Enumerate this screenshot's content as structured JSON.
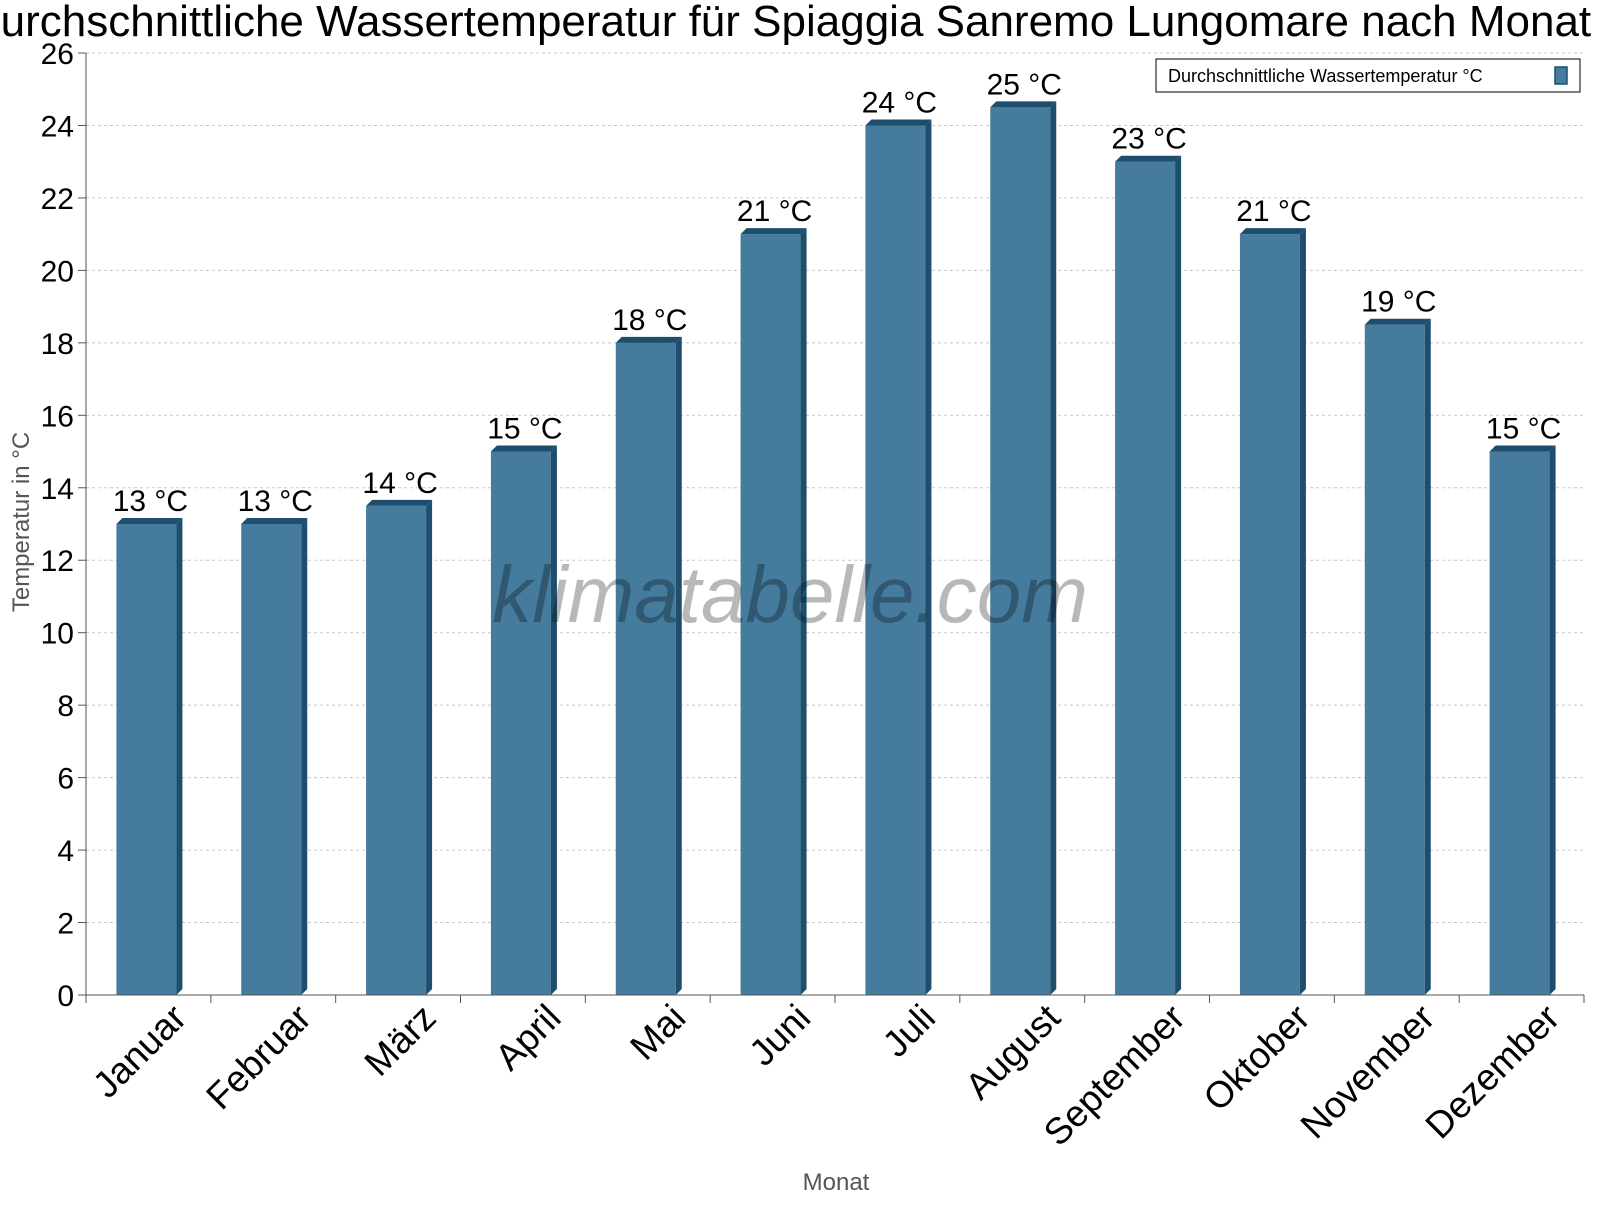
{
  "chart_data": {
    "type": "bar",
    "title": "Durchschnittliche Wassertemperatur für Spiaggia Sanremo Lungomare nach Monat",
    "xlabel": "Monat",
    "ylabel": "Temperatur in °C",
    "categories": [
      "Januar",
      "Februar",
      "März",
      "April",
      "Mai",
      "Juni",
      "Juli",
      "August",
      "September",
      "Oktober",
      "November",
      "Dezember"
    ],
    "series": [
      {
        "name": "Durchschnittliche Wassertemperatur °C",
        "values": [
          13,
          13,
          13.5,
          15,
          18,
          21,
          24,
          24.5,
          23,
          21,
          18.5,
          15
        ],
        "labels": [
          "13 °C",
          "13 °C",
          "14 °C",
          "15 °C",
          "18 °C",
          "21 °C",
          "24 °C",
          "25 °C",
          "23 °C",
          "21 °C",
          "19 °C",
          "15 °C"
        ]
      }
    ],
    "ylim": [
      0,
      26
    ],
    "yticks": [
      0,
      2,
      4,
      6,
      8,
      10,
      12,
      14,
      16,
      18,
      20,
      22,
      24,
      26
    ],
    "grid": true,
    "legend_position": "top-right",
    "colors": {
      "bar": "#457b9d",
      "bar_edge": "#1d4e6e",
      "grid": "#c8c8c8",
      "axis": "#555555"
    }
  },
  "watermark": "klimatabelle.com"
}
